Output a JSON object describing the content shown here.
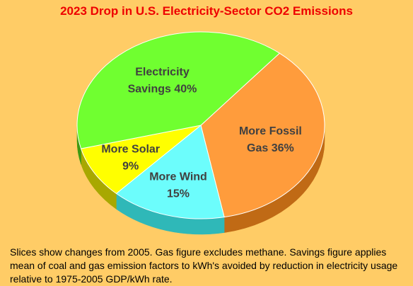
{
  "chart_data": {
    "type": "pie",
    "title": "2023 Drop in U.S. Electricity-Sector CO2 Emissions",
    "slices": [
      {
        "name": "More Fossil Gas",
        "value": 36,
        "label_lines": [
          "More Fossil",
          "Gas 36%"
        ],
        "color": "#ff9c3c",
        "side": "#c06a15"
      },
      {
        "name": "More Wind",
        "value": 15,
        "label_lines": [
          "More Wind",
          "15%"
        ],
        "color": "#6cfdfc",
        "side": "#2fb8b8"
      },
      {
        "name": "More Solar",
        "value": 9,
        "label_lines": [
          "More Solar",
          "9%"
        ],
        "color": "#ffff00",
        "side": "#a8a800"
      },
      {
        "name": "Electricity Savings",
        "value": 40,
        "label_lines": [
          "Electricity",
          "Savings 40%"
        ],
        "color": "#70ff30",
        "side": "#3d9a12"
      }
    ]
  },
  "note": "Slices show changes from 2005. Gas figure excludes methane. Savings figure applies mean of coal and gas emission factors to kWh's avoided by reduction in electricity usage relative to 1975-2005 GDP/kWh rate."
}
